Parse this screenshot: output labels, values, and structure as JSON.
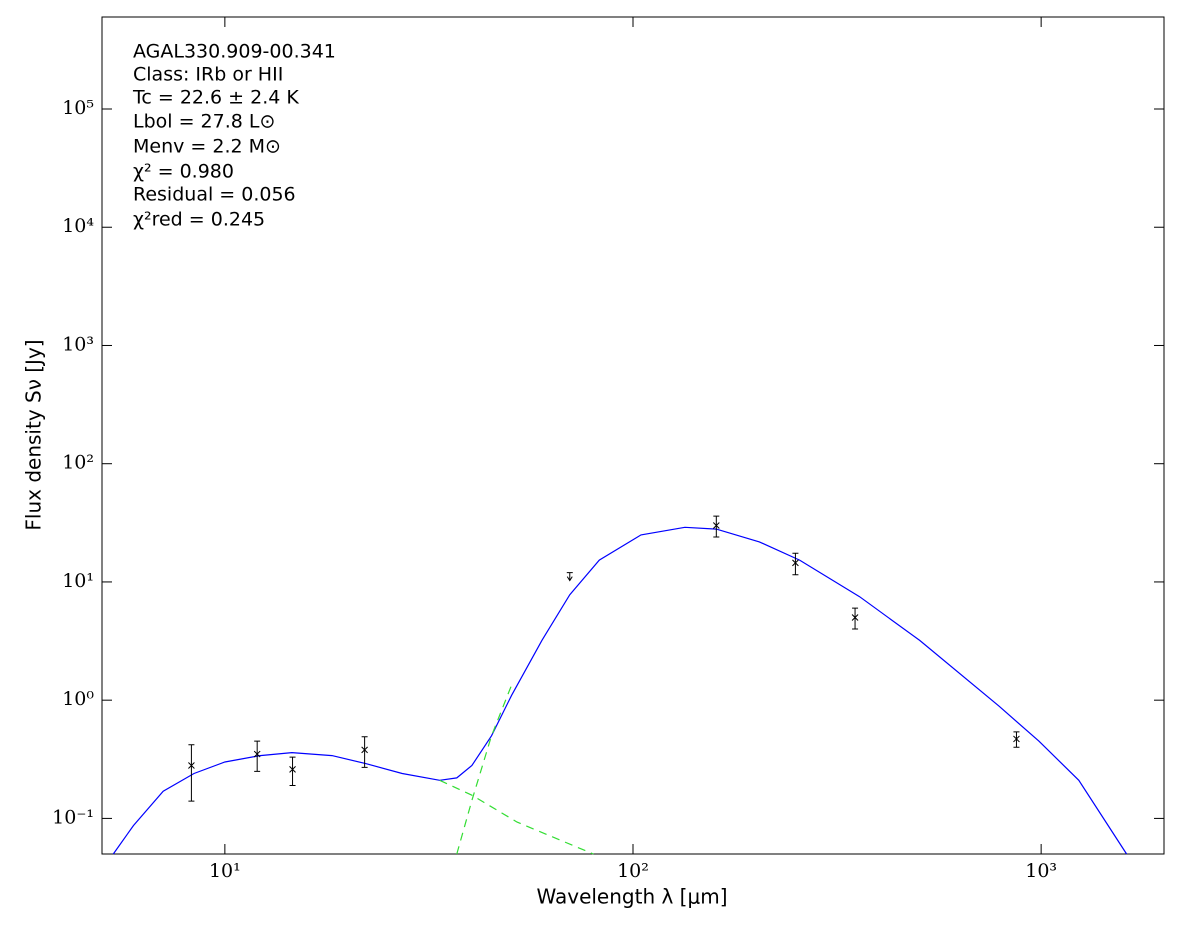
{
  "chart_data": {
    "type": "scatter",
    "xlabel": "Wavelength λ [μm]",
    "ylabel": "Flux density Sν [Jy]",
    "log_x": true,
    "log_y": true,
    "xlim": [
      5,
      2000
    ],
    "ylim": [
      0.05,
      600000
    ],
    "xticks": [
      {
        "value": 10,
        "label": "10¹"
      },
      {
        "value": 100,
        "label": "10²"
      },
      {
        "value": 1000,
        "label": "10³"
      }
    ],
    "yticks": [
      {
        "value": 0.1,
        "label": "10⁻¹"
      },
      {
        "value": 1,
        "label": "10⁰"
      },
      {
        "value": 10,
        "label": "10¹"
      },
      {
        "value": 100,
        "label": "10²"
      },
      {
        "value": 1000,
        "label": "10³"
      },
      {
        "value": 10000,
        "label": "10⁴"
      },
      {
        "value": 100000,
        "label": "10⁵"
      }
    ],
    "annotations": [
      "AGAL330.909-00.341",
      "Class: IRb or HII",
      "Tc = 22.6 ± 2.4 K",
      "Lbol = 27.8 L⊙",
      "Menv = 2.2 M⊙",
      "χ² = 0.980",
      "Residual = 0.056",
      "χ²red = 0.245"
    ],
    "points": {
      "color": "#000000",
      "x": [
        8.28,
        12,
        14.65,
        22,
        70,
        160,
        250,
        350,
        870
      ],
      "values": [
        0.28,
        0.35,
        0.26,
        0.38,
        12,
        30,
        14.5,
        5,
        0.47
      ],
      "errors": [
        0.14,
        0.1,
        0.07,
        0.11,
        null,
        6,
        3,
        1,
        0.07
      ],
      "upper_limits": [
        false,
        false,
        false,
        false,
        true,
        false,
        false,
        false,
        false
      ]
    },
    "model_lines": [
      {
        "color": "#0000ff",
        "dashed": false,
        "x": [
          5.33,
          5.97,
          7.06,
          8.4,
          10,
          12.2,
          14.6,
          18.3,
          22.2,
          27.2,
          33.6,
          37,
          40.3,
          45,
          50.4,
          59.8,
          70,
          82.7,
          104.6,
          134,
          160,
          204,
          256,
          359,
          504,
          789,
          988,
          1237,
          1620
        ],
        "values": [
          0.05,
          0.087,
          0.17,
          0.24,
          0.3,
          0.34,
          0.36,
          0.34,
          0.29,
          0.24,
          0.21,
          0.22,
          0.28,
          0.5,
          1.1,
          3.2,
          7.8,
          15.3,
          25,
          29,
          28,
          21.8,
          15.3,
          7.5,
          3.2,
          0.89,
          0.45,
          0.21,
          0.05
        ]
      },
      {
        "color": "#33dd33",
        "dashed": true,
        "x": [
          37,
          40.3,
          45,
          50.4
        ],
        "values": [
          0.05,
          0.142,
          0.5,
          1.34
        ]
      },
      {
        "color": "#33dd33",
        "dashed": true,
        "x": [
          33.6,
          40.3,
          52,
          80
        ],
        "values": [
          0.21,
          0.157,
          0.093,
          0.05
        ]
      }
    ]
  }
}
